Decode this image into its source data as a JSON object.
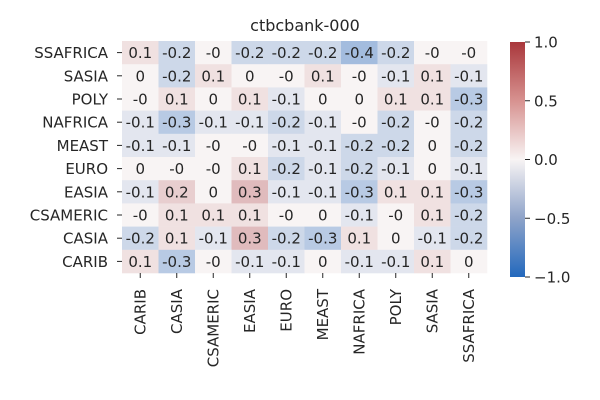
{
  "chart_data": {
    "type": "heatmap",
    "title": "ctbcbank-000",
    "xlabel": "",
    "ylabel": "",
    "rows": [
      "SSAFRICA",
      "SASIA",
      "POLY",
      "NAFRICA",
      "MEAST",
      "EURO",
      "EASIA",
      "CSAMERIC",
      "CASIA",
      "CARIB"
    ],
    "columns": [
      "CARIB",
      "CASIA",
      "CSAMERIC",
      "EASIA",
      "EURO",
      "MEAST",
      "NAFRICA",
      "POLY",
      "SASIA",
      "SSAFRICA"
    ],
    "values": [
      [
        0.1,
        -0.2,
        0,
        -0.2,
        -0.2,
        -0.2,
        -0.4,
        -0.2,
        0,
        0
      ],
      [
        0,
        -0.2,
        0.1,
        0,
        0,
        0.1,
        0,
        -0.1,
        0.1,
        -0.1
      ],
      [
        0,
        0.1,
        0,
        0.1,
        -0.1,
        0,
        0,
        0.1,
        0.1,
        -0.3
      ],
      [
        -0.1,
        -0.3,
        -0.1,
        -0.1,
        -0.2,
        -0.1,
        0,
        -0.2,
        0,
        -0.2
      ],
      [
        -0.1,
        -0.1,
        0,
        0,
        -0.1,
        -0.1,
        -0.2,
        -0.2,
        0,
        -0.2
      ],
      [
        0,
        0,
        0,
        0.1,
        -0.2,
        -0.1,
        -0.2,
        -0.1,
        0,
        -0.1
      ],
      [
        -0.1,
        0.2,
        0,
        0.3,
        -0.1,
        -0.1,
        -0.3,
        0.1,
        0.1,
        -0.3
      ],
      [
        0,
        0.1,
        0.1,
        0.1,
        0,
        0,
        -0.1,
        0,
        0.1,
        -0.2
      ],
      [
        -0.2,
        0.1,
        -0.1,
        0.3,
        -0.2,
        -0.3,
        0.1,
        0,
        -0.1,
        -0.2
      ],
      [
        0.1,
        -0.3,
        0,
        -0.1,
        -0.1,
        0,
        -0.1,
        -0.1,
        0.1,
        0
      ]
    ],
    "cell_labels": [
      [
        "0.1",
        "-0.2",
        "-0",
        "-0.2",
        "-0.2",
        "-0.2",
        "-0.4",
        "-0.2",
        "-0",
        "-0"
      ],
      [
        "0",
        "-0.2",
        "0.1",
        "0",
        "-0",
        "0.1",
        "-0",
        "-0.1",
        "0.1",
        "-0.1"
      ],
      [
        "-0",
        "0.1",
        "0",
        "0.1",
        "-0.1",
        "0",
        "0",
        "0.1",
        "0.1",
        "-0.3"
      ],
      [
        "-0.1",
        "-0.3",
        "-0.1",
        "-0.1",
        "-0.2",
        "-0.1",
        "-0",
        "-0.2",
        "-0",
        "-0.2"
      ],
      [
        "-0.1",
        "-0.1",
        "-0",
        "-0",
        "-0.1",
        "-0.1",
        "-0.2",
        "-0.2",
        "0",
        "-0.2"
      ],
      [
        "0",
        "-0",
        "-0",
        "0.1",
        "-0.2",
        "-0.1",
        "-0.2",
        "-0.1",
        "0",
        "-0.1"
      ],
      [
        "-0.1",
        "0.2",
        "0",
        "0.3",
        "-0.1",
        "-0.1",
        "-0.3",
        "0.1",
        "0.1",
        "-0.3"
      ],
      [
        "-0",
        "0.1",
        "0.1",
        "0.1",
        "-0",
        "0",
        "-0.1",
        "-0",
        "0.1",
        "-0.2"
      ],
      [
        "-0.2",
        "0.1",
        "-0.1",
        "0.3",
        "-0.2",
        "-0.3",
        "0.1",
        "0",
        "-0.1",
        "-0.2"
      ],
      [
        "0.1",
        "-0.3",
        "-0",
        "-0.1",
        "-0.1",
        "0",
        "-0.1",
        "-0.1",
        "0.1",
        "0"
      ]
    ],
    "colorbar": {
      "vmin": -1.0,
      "vmax": 1.0,
      "ticks": [
        1.0,
        0.5,
        0.0,
        -0.5,
        -1.0
      ],
      "tick_labels": [
        "1.0",
        "0.5",
        "0.0",
        "−0.5",
        "−1.0"
      ],
      "colormap": "vlag",
      "colors": {
        "low": "#2369bd",
        "mid": "#f8f4f4",
        "high": "#a9373b"
      }
    }
  }
}
